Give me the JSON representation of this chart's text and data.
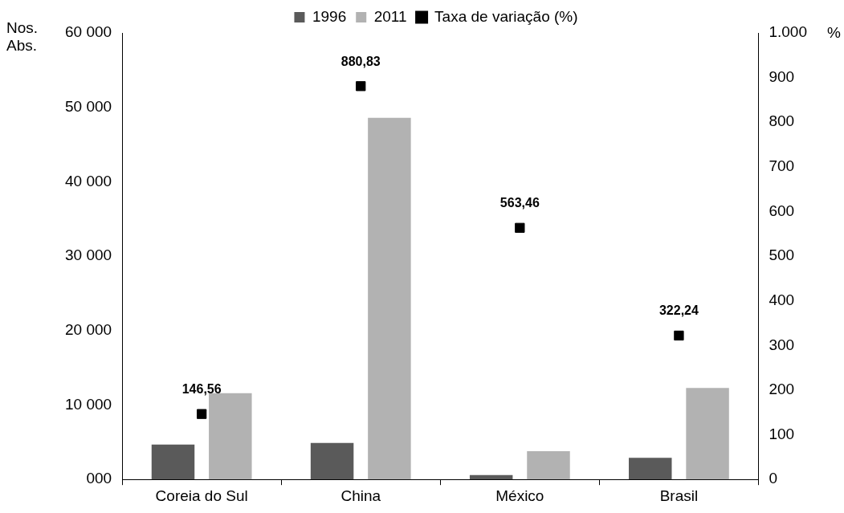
{
  "chart_data": {
    "type": "bar",
    "categories": [
      "Coreia do Sul",
      "China",
      "México",
      "Brasil"
    ],
    "ylabel": "Nos. Abs.",
    "y2label": "%",
    "series": [
      {
        "name": "1996",
        "color": "#5a5a5a",
        "values": [
          4700,
          4900,
          600,
          2900
        ]
      },
      {
        "name": "2011",
        "color": "#b2b2b2",
        "values": [
          11600,
          48600,
          3800,
          12300
        ]
      },
      {
        "name": "Taxa de variação (%)",
        "type": "scatter",
        "axis": "y2",
        "color": "#000000",
        "values": [
          146.56,
          880.83,
          563.46,
          322.24
        ],
        "value_labels": [
          "146,56",
          "880,83",
          "563,46",
          "322,24"
        ]
      }
    ],
    "ylim": [
      0,
      60000
    ],
    "yticks": [
      {
        "value": 0,
        "label": "000"
      },
      {
        "value": 10000,
        "label": "10 000"
      },
      {
        "value": 20000,
        "label": "20 000"
      },
      {
        "value": 30000,
        "label": "30 000"
      },
      {
        "value": 40000,
        "label": "40 000"
      },
      {
        "value": 50000,
        "label": "50 000"
      },
      {
        "value": 60000,
        "label": "60 000"
      }
    ],
    "y2lim": [
      0,
      1000
    ],
    "y2ticks": [
      0,
      100,
      200,
      300,
      400,
      500,
      600,
      700,
      800,
      900,
      {
        "value": 1000,
        "label": "1.000"
      }
    ],
    "marker": "square",
    "legend": "top",
    "grid": false
  }
}
